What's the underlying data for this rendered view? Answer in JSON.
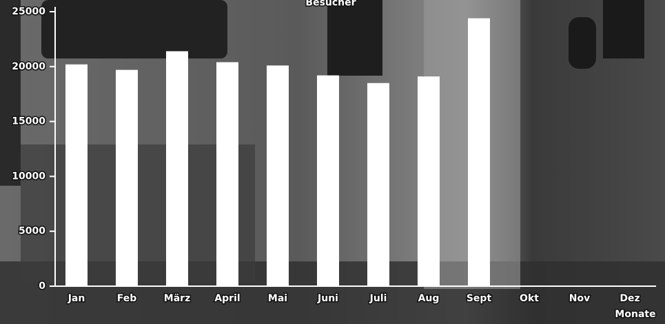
{
  "chart_data": {
    "type": "bar",
    "y_label": "Besucher",
    "x_label": "Monate",
    "categories": [
      "Jan",
      "Feb",
      "März",
      "April",
      "Mai",
      "Juni",
      "Juli",
      "Aug",
      "Sept",
      "Okt",
      "Nov",
      "Dez"
    ],
    "values": [
      20200,
      19700,
      21400,
      20400,
      20100,
      19200,
      18500,
      19100,
      24400,
      null,
      null,
      null
    ],
    "color": "#ffffff",
    "ylim": [
      0,
      25000
    ],
    "yticks": [
      0,
      5000,
      10000,
      15000,
      20000,
      25000
    ]
  }
}
